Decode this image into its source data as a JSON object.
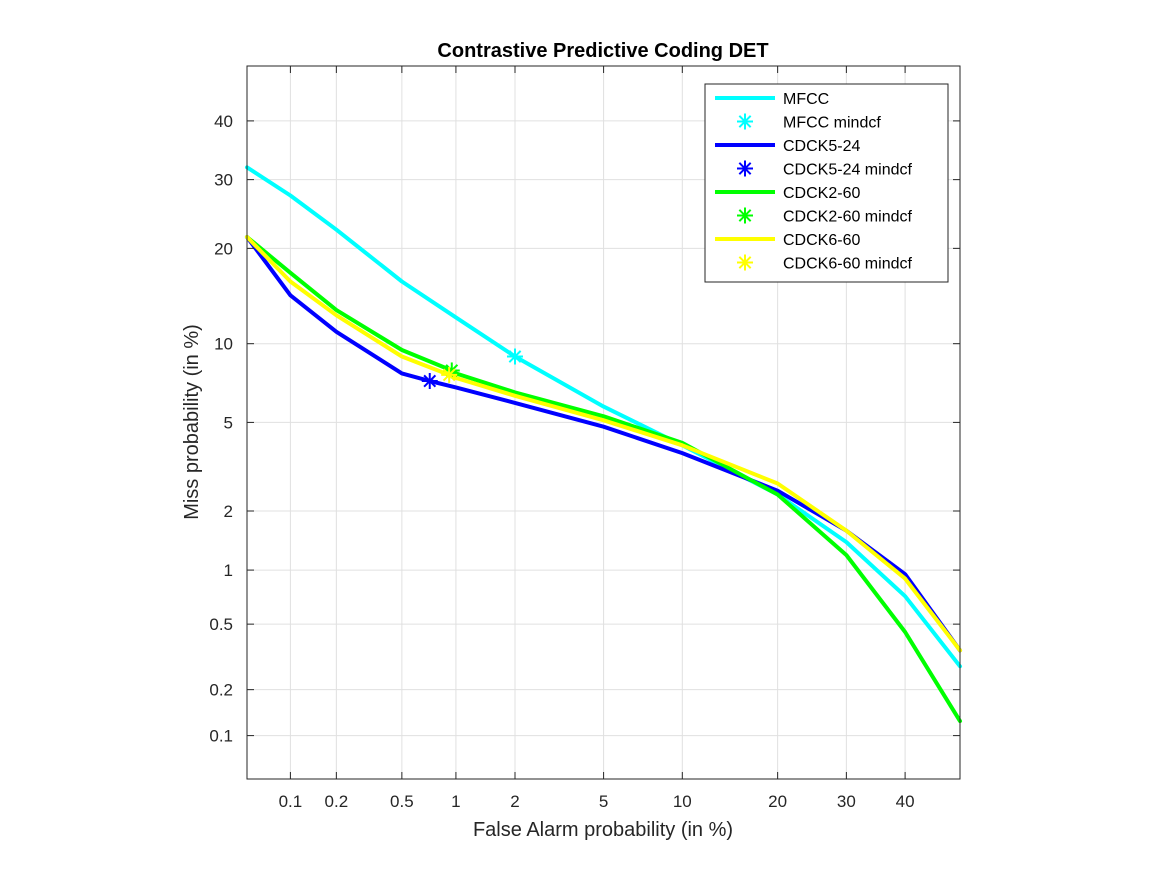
{
  "chart_data": {
    "type": "line",
    "title": "Contrastive Predictive Coding DET",
    "xlabel": "False Alarm probability (in %)",
    "ylabel": "Miss probability (in %)",
    "x_scale": "probit",
    "y_scale": "probit",
    "xlim": [
      0.05,
      50
    ],
    "ylim": [
      0.05,
      50
    ],
    "x_ticks": [
      0.1,
      0.2,
      0.5,
      1,
      2,
      5,
      10,
      20,
      30,
      40
    ],
    "x_tick_labels": [
      "0.1",
      "0.2",
      "0.5",
      "1",
      "2",
      "5",
      "10",
      "20",
      "30",
      "40"
    ],
    "y_ticks": [
      0.1,
      0.2,
      0.5,
      1,
      2,
      5,
      10,
      20,
      30,
      40
    ],
    "y_tick_labels": [
      "0.1",
      "0.2",
      "0.5",
      "1",
      "2",
      "5",
      "10",
      "20",
      "30",
      "40"
    ],
    "grid": true,
    "legend_position": "top-right",
    "series": [
      {
        "name": "MFCC",
        "color": "#00ffff",
        "points": [
          [
            0.05,
            32
          ],
          [
            0.1,
            27.5
          ],
          [
            0.2,
            22.5
          ],
          [
            0.5,
            16
          ],
          [
            1,
            12.3
          ],
          [
            2,
            9
          ],
          [
            5,
            5.8
          ],
          [
            10,
            4
          ],
          [
            20,
            2.4
          ],
          [
            30,
            1.4
          ],
          [
            40,
            0.72
          ],
          [
            50,
            0.28
          ]
        ]
      },
      {
        "name": "CDCK5-24",
        "color": "#0000ff",
        "points": [
          [
            0.05,
            21.5
          ],
          [
            0.1,
            14.5
          ],
          [
            0.2,
            11
          ],
          [
            0.5,
            7.8
          ],
          [
            0.72,
            7.3
          ],
          [
            1,
            6.9
          ],
          [
            2,
            6
          ],
          [
            5,
            4.8
          ],
          [
            10,
            3.7
          ],
          [
            20,
            2.5
          ],
          [
            30,
            1.6
          ],
          [
            40,
            0.95
          ],
          [
            50,
            0.35
          ]
        ]
      },
      {
        "name": "CDCK2-60",
        "color": "#00ff00",
        "points": [
          [
            0.05,
            21.5
          ],
          [
            0.1,
            17
          ],
          [
            0.2,
            13
          ],
          [
            0.5,
            9.5
          ],
          [
            0.95,
            8
          ],
          [
            1,
            7.8
          ],
          [
            2,
            6.6
          ],
          [
            5,
            5.3
          ],
          [
            10,
            4.1
          ],
          [
            20,
            2.4
          ],
          [
            30,
            1.2
          ],
          [
            40,
            0.45
          ],
          [
            50,
            0.125
          ]
        ]
      },
      {
        "name": "CDCK6-60",
        "color": "#ffff00",
        "points": [
          [
            0.05,
            21.5
          ],
          [
            0.1,
            16
          ],
          [
            0.2,
            12.5
          ],
          [
            0.5,
            9
          ],
          [
            0.92,
            7.7
          ],
          [
            1,
            7.5
          ],
          [
            2,
            6.4
          ],
          [
            5,
            5.1
          ],
          [
            10,
            4
          ],
          [
            20,
            2.7
          ],
          [
            30,
            1.6
          ],
          [
            40,
            0.9
          ],
          [
            50,
            0.35
          ]
        ]
      }
    ],
    "mindcf_points": [
      {
        "name": "MFCC mindcf",
        "color": "#00ffff",
        "x": 2,
        "y": 9
      },
      {
        "name": "CDCK5-24 mindcf",
        "color": "#0000ff",
        "x": 0.72,
        "y": 7.3
      },
      {
        "name": "CDCK2-60 mindcf",
        "color": "#00ff00",
        "x": 0.95,
        "y": 8
      },
      {
        "name": "CDCK6-60 mindcf",
        "color": "#ffff00",
        "x": 0.92,
        "y": 7.7
      }
    ],
    "legend": [
      {
        "label": "MFCC",
        "kind": "line",
        "color": "#00ffff"
      },
      {
        "label": "MFCC mindcf",
        "kind": "marker",
        "color": "#00ffff"
      },
      {
        "label": "CDCK5-24",
        "kind": "line",
        "color": "#0000ff"
      },
      {
        "label": "CDCK5-24 mindcf",
        "kind": "marker",
        "color": "#0000ff"
      },
      {
        "label": "CDCK2-60",
        "kind": "line",
        "color": "#00ff00"
      },
      {
        "label": "CDCK2-60 mindcf",
        "kind": "marker",
        "color": "#00ff00"
      },
      {
        "label": "CDCK6-60",
        "kind": "line",
        "color": "#ffff00"
      },
      {
        "label": "CDCK6-60 mindcf",
        "kind": "marker",
        "color": "#ffff00"
      }
    ]
  }
}
